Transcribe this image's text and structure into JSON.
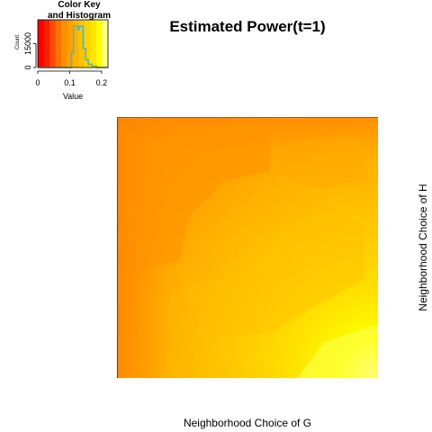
{
  "chart_data": [
    {
      "type": "heatmap",
      "title": "Estimated Power(t=1)",
      "xlabel": "Neighborhood Choice of G",
      "ylabel": "Neighborhood Choice of H",
      "color_scale": [
        "#ff0000",
        "#ff4a00",
        "#ff8f00",
        "#ffb300",
        "#ffd400",
        "#ffff00",
        "#ffffc8"
      ],
      "value_range": [
        0,
        0.22
      ],
      "pattern": "values increase toward the bottom-right; largest (pale yellow) in the bottom-right corner, darker orange band along the left and top"
    },
    {
      "type": "histogram",
      "title": "Color Key\nand Histogram",
      "xlabel": "Value",
      "ylabel": "Count",
      "x_ticks": [
        "0",
        "0.1",
        "0.2"
      ],
      "y_ticks": [
        "0",
        "15000"
      ],
      "x_range": [
        0,
        0.22
      ],
      "histogram_x": [
        0.098,
        0.105,
        0.112,
        0.118,
        0.124,
        0.13,
        0.136,
        0.142,
        0.15,
        0.158,
        0.17,
        0.185
      ],
      "histogram_y": [
        0,
        9000,
        26000,
        26000,
        24000,
        26000,
        26000,
        12000,
        5000,
        2000,
        800,
        0
      ],
      "key_colors": [
        "#ff0000",
        "#ff1e00",
        "#ff4a00",
        "#ff7000",
        "#ff8f00",
        "#ffa100",
        "#ffb300",
        "#ffc400",
        "#ffd400",
        "#ffe600",
        "#ffff00",
        "#ffff8a"
      ]
    }
  ]
}
